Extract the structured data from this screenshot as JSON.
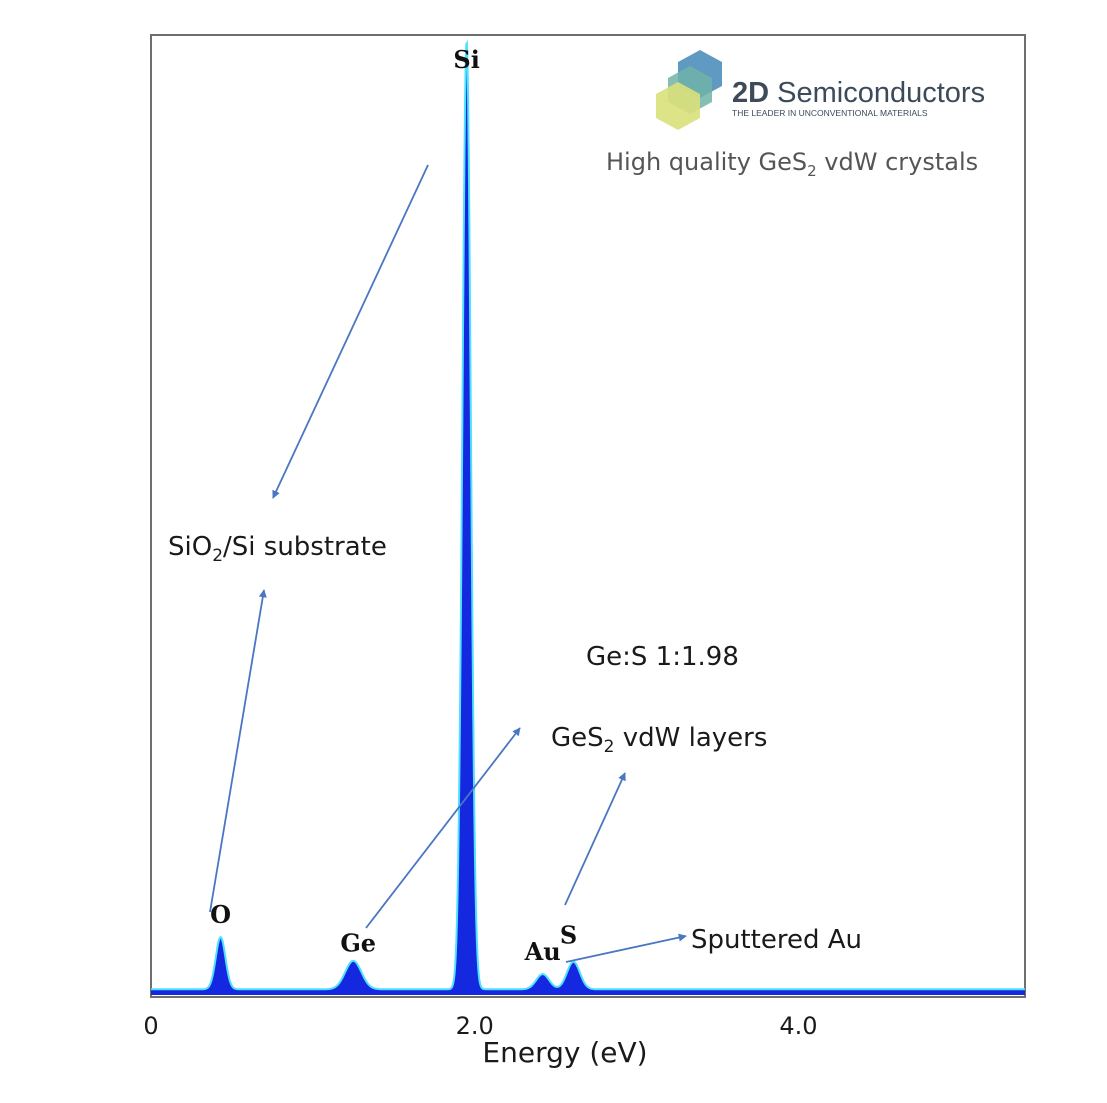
{
  "branding": {
    "company_bold": "2D",
    "company_rest": " Semiconductors",
    "tagline": "THE LEADER IN UNCONVENTIONAL MATERIALS",
    "subtitle_pre": "High quality GeS",
    "subtitle_sub": "2",
    "subtitle_post": " vdW crystals",
    "colors": {
      "hex_blue": "#4f8fbd",
      "hex_teal": "#6fb3a8",
      "hex_yellow": "#d9e07a"
    }
  },
  "annotations": {
    "substrate": {
      "pre": "SiO",
      "sub": "2",
      "post": "/Si substrate"
    },
    "ratio": "Ge:S 1:1.98",
    "layers": {
      "pre": "GeS",
      "sub": "2",
      "post": " vdW layers"
    },
    "sputtered": "Sputtered Au"
  },
  "colors": {
    "spectrum_fill": "#1428e0",
    "spectrum_outline": "#4ee0ff",
    "arrow": "#4a76c2",
    "axis": "#6e6e6e"
  },
  "chart_data": {
    "type": "area",
    "title": "",
    "xlabel": "Energy (eV)",
    "ylabel": "",
    "xlim": [
      0,
      5.4
    ],
    "ylim": [
      0,
      100
    ],
    "x_ticks": [
      {
        "value": 0,
        "label": "0"
      },
      {
        "value": 2.0,
        "label": "2.0"
      },
      {
        "value": 4.0,
        "label": "4.0"
      }
    ],
    "grid": false,
    "legend": "none",
    "baseline": 0.6,
    "series": [
      {
        "peaks": [
          {
            "element": "O",
            "energy": 0.43,
            "height": 5.5,
            "width": 0.03
          },
          {
            "element": "Ge",
            "energy": 1.25,
            "height": 3.0,
            "width": 0.05
          },
          {
            "element": "Si",
            "energy": 1.95,
            "height": 100,
            "width": 0.026
          },
          {
            "element": "Au",
            "energy": 2.42,
            "height": 1.6,
            "width": 0.04
          },
          {
            "element": "S",
            "energy": 2.61,
            "height": 2.9,
            "width": 0.04
          }
        ]
      }
    ],
    "peak_labels": [
      {
        "text": "Si",
        "energy": 1.95
      },
      {
        "text": "O",
        "energy": 0.43
      },
      {
        "text": "Ge",
        "energy": 1.28
      },
      {
        "text": "Au",
        "energy": 2.42
      },
      {
        "text": "S",
        "energy": 2.58
      }
    ]
  }
}
